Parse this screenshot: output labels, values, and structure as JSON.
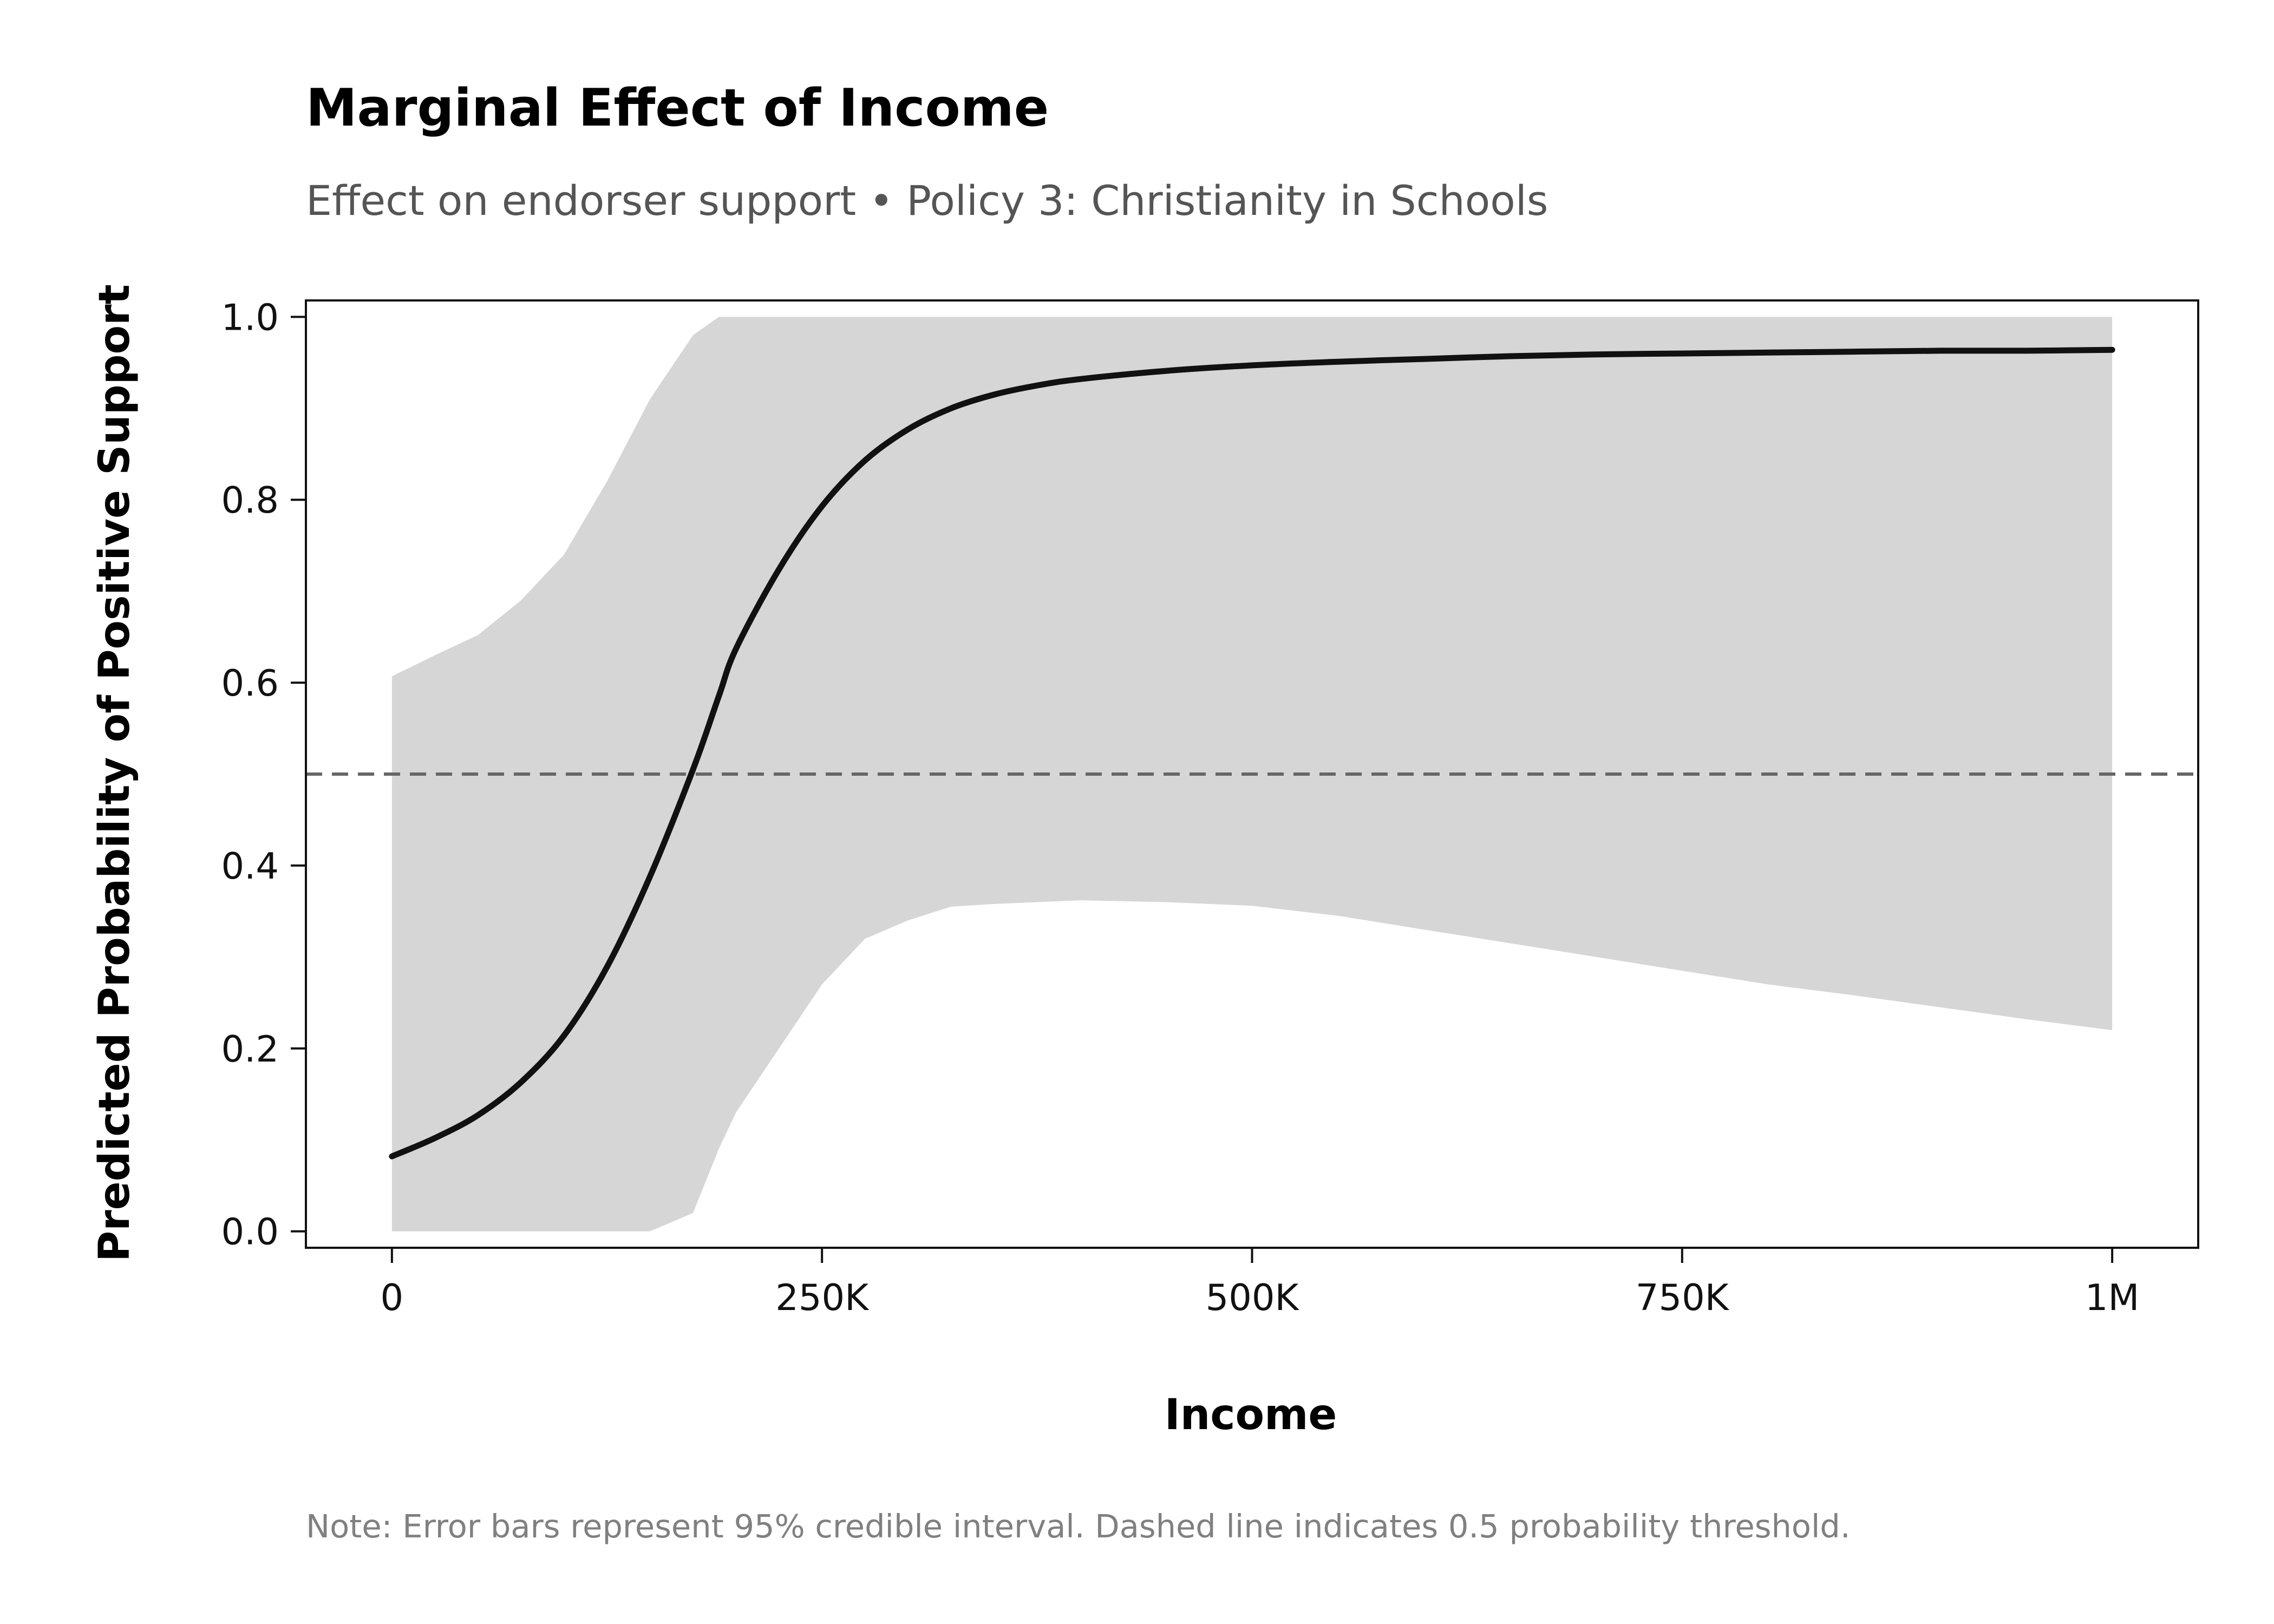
{
  "chart_data": {
    "type": "line",
    "title": "Marginal Effect of Income",
    "subtitle": "Effect on endorser support • Policy 3: Christianity in Schools",
    "xlabel": "Income",
    "ylabel": "Predicted Probability of Positive Support",
    "note": "Note: Error bars represent 95% credible interval. Dashed line indicates 0.5 probability threshold.",
    "xlim": [
      -50000,
      1050000
    ],
    "ylim": [
      -0.018,
      1.018
    ],
    "x_ticks": [
      0,
      250000,
      500000,
      750000,
      1000000
    ],
    "x_tick_labels": [
      "0",
      "250K",
      "500K",
      "750K",
      "1M"
    ],
    "y_ticks": [
      0.0,
      0.2,
      0.4,
      0.6,
      0.8,
      1.0
    ],
    "y_tick_labels": [
      "0.0",
      "0.2",
      "0.4",
      "0.6",
      "0.8",
      "1.0"
    ],
    "grid": false,
    "reference_line": {
      "y": 0.5,
      "style": "dashed",
      "color": "#666666"
    },
    "colors": {
      "line": "#111111",
      "band": "#d6d6d6"
    },
    "series": [
      {
        "x": [
          0,
          25000,
          50000,
          75000,
          100000,
          125000,
          150000,
          175000,
          190000,
          200000,
          225000,
          250000,
          275000,
          300000,
          325000,
          350000,
          375000,
          400000,
          450000,
          500000,
          550000,
          600000,
          650000,
          700000,
          750000,
          800000,
          850000,
          900000,
          950000,
          1000000
        ],
        "y": [
          0.082,
          0.102,
          0.127,
          0.163,
          0.214,
          0.289,
          0.388,
          0.505,
          0.585,
          0.637,
          0.724,
          0.793,
          0.843,
          0.877,
          0.9,
          0.915,
          0.925,
          0.932,
          0.941,
          0.947,
          0.951,
          0.954,
          0.957,
          0.959,
          0.96,
          0.961,
          0.962,
          0.963,
          0.963,
          0.964
        ],
        "ci_lower": [
          0.0,
          0.0,
          0.0,
          0.0,
          0.0,
          0.0,
          0.0,
          0.02,
          0.09,
          0.13,
          0.2,
          0.27,
          0.32,
          0.34,
          0.355,
          0.358,
          0.36,
          0.362,
          0.36,
          0.356,
          0.345,
          0.33,
          0.315,
          0.3,
          0.285,
          0.27,
          0.258,
          0.245,
          0.232,
          0.22
        ],
        "ci_upper": [
          0.607,
          0.63,
          0.652,
          0.69,
          0.74,
          0.82,
          0.91,
          0.98,
          1.0,
          1.0,
          1.0,
          1.0,
          1.0,
          1.0,
          1.0,
          1.0,
          1.0,
          1.0,
          1.0,
          1.0,
          1.0,
          1.0,
          1.0,
          1.0,
          1.0,
          1.0,
          1.0,
          1.0,
          1.0,
          1.0
        ]
      }
    ]
  }
}
